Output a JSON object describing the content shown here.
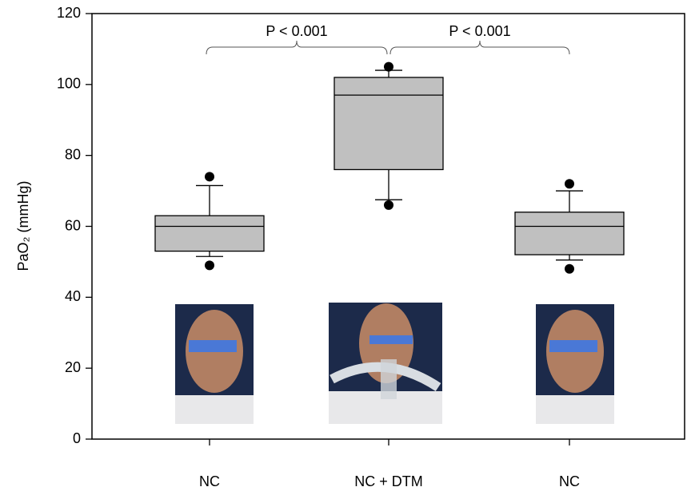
{
  "chart_data": {
    "type": "box",
    "y_label": "PaO₂ (mmHg)",
    "categories": [
      "NC",
      "NC + DTM",
      "NC"
    ],
    "color": "#c0c0c0",
    "boxes": [
      {
        "whisker_low": 51.5,
        "q1": 53,
        "median": 60,
        "q3": 63,
        "whisker_high": 71.5,
        "outliers": [
          74,
          49
        ]
      },
      {
        "whisker_low": 67.5,
        "q1": 76,
        "median": 97,
        "q3": 102,
        "whisker_high": 104,
        "outliers": [
          105,
          66
        ]
      },
      {
        "whisker_low": 50.5,
        "q1": 52,
        "median": 60,
        "q3": 64,
        "whisker_high": 70,
        "outliers": [
          72,
          48
        ]
      }
    ],
    "ylim": [
      0,
      120
    ],
    "yticks": [
      0,
      20,
      40,
      60,
      80,
      100,
      120
    ],
    "annotations": [
      "P < 0.001",
      "P < 0.001"
    ]
  }
}
